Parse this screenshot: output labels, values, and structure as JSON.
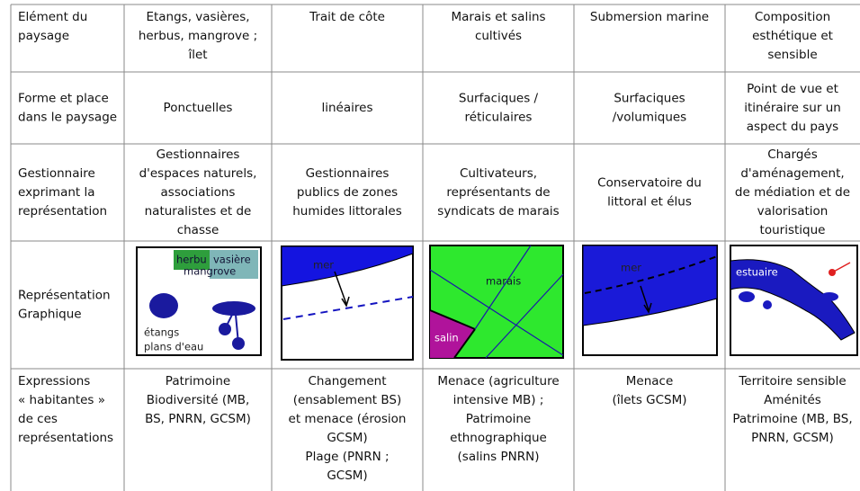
{
  "table": {
    "rows": [
      [
        [
          "Elément du",
          "paysage"
        ],
        [
          "Etangs, vasières,",
          "herbus, mangrove ;",
          "îlet"
        ],
        [
          "Trait de côte"
        ],
        [
          "Marais et salins",
          "cultivés"
        ],
        [
          "Submersion marine"
        ],
        [
          "Composition",
          "esthétique et",
          "sensible"
        ]
      ],
      [
        [
          "Forme et place",
          "dans le paysage"
        ],
        [
          "Ponctuelles"
        ],
        [
          "linéaires"
        ],
        [
          "Surfaciques /",
          "réticulaires"
        ],
        [
          "Surfaciques",
          "/volumiques"
        ],
        [
          "Point de vue et",
          "itinéraire sur un",
          "aspect du pays"
        ]
      ],
      [
        [
          "Gestionnaire",
          "exprimant la",
          "représentation"
        ],
        [
          "Gestionnaires",
          "d'espaces naturels,",
          "associations",
          "naturalistes et de",
          "chasse"
        ],
        [
          "Gestionnaires",
          "publics de zones",
          "humides littorales"
        ],
        [
          "Cultivateurs,",
          "représentants de",
          "syndicats de marais"
        ],
        [
          "Conservatoire du",
          "littoral et élus"
        ],
        [
          "Chargés",
          "d'aménagement,",
          "de médiation et de",
          "valorisation",
          "touristique"
        ]
      ],
      [
        [
          "Représentation",
          "Graphique"
        ]
      ],
      [
        [
          "Expressions",
          "« habitantes »",
          "de ces",
          "représentations"
        ],
        [
          "Patrimoine",
          "Biodiversité  (MB,",
          "BS, PNRN, GCSM)"
        ],
        [
          "Changement",
          "(ensablement BS)",
          "et menace  (érosion",
          "GCSM)",
          "Plage (PNRN ;",
          "GCSM)"
        ],
        [
          "Menace (agriculture",
          "intensive MB) ;",
          "Patrimoine",
          "ethnographique",
          "(salins PNRN)"
        ],
        [
          "Menace",
          "(îlets GCSM)"
        ],
        [
          "Territoire sensible",
          "Aménités",
          "Patrimoine  (MB, BS,",
          "PNRN, GCSM)"
        ]
      ]
    ]
  },
  "figures": {
    "wetlands": [
      "herbu",
      "vasière",
      "mangrove",
      "étangs",
      "plans d'eau"
    ],
    "coast": [
      "mer"
    ],
    "marsh": [
      "marais",
      "salin"
    ],
    "submersion": [
      "mer"
    ],
    "estuary": [
      "estuaire"
    ]
  }
}
